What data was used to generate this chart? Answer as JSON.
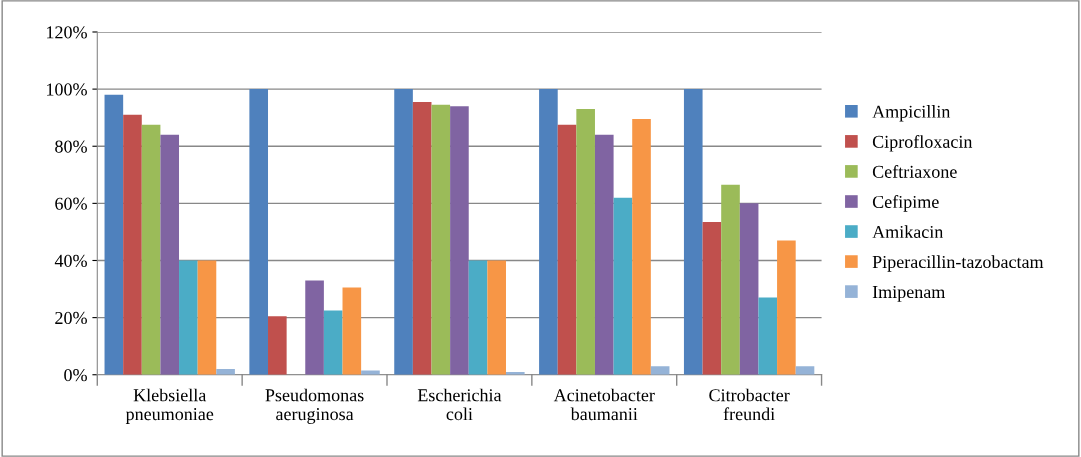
{
  "chart_data": {
    "type": "bar",
    "categories": [
      "Klebsiella\npneumoniae",
      "Pseudomonas\naeruginosa",
      "Escherichia\ncoli",
      "Acinetobacter\nbaumanii",
      "Citrobacter\nfreundi"
    ],
    "series": [
      {
        "name": "Ampicillin",
        "color": "#4f81bd",
        "values": [
          98,
          100,
          100,
          100,
          100
        ]
      },
      {
        "name": "Ciprofloxacin",
        "color": "#c0504d",
        "values": [
          91,
          20.5,
          95.5,
          87.5,
          53.5
        ]
      },
      {
        "name": "Ceftriaxone",
        "color": "#9bbb59",
        "values": [
          87.5,
          0,
          94.5,
          93,
          66.5
        ]
      },
      {
        "name": "Cefipime",
        "color": "#8064a2",
        "values": [
          84,
          33,
          94,
          84,
          60
        ]
      },
      {
        "name": "Amikacin",
        "color": "#4bacc6",
        "values": [
          40,
          22.5,
          40,
          62,
          27
        ]
      },
      {
        "name": "Piperacillin-tazobactam",
        "color": "#f79646",
        "values": [
          40,
          30.5,
          40,
          89.5,
          47
        ]
      },
      {
        "name": "Imipenam",
        "color": "#95b3d7",
        "values": [
          2,
          1.5,
          1,
          3,
          3
        ]
      }
    ],
    "ylim": [
      0,
      120
    ],
    "yticks": [
      {
        "value": 0,
        "label": "0%"
      },
      {
        "value": 20,
        "label": "20%"
      },
      {
        "value": 40,
        "label": "40%"
      },
      {
        "value": 60,
        "label": "60%"
      },
      {
        "value": 80,
        "label": "80%"
      },
      {
        "value": 100,
        "label": "100%"
      },
      {
        "value": 120,
        "label": "120%"
      }
    ],
    "grid": "y",
    "legend": "right"
  }
}
